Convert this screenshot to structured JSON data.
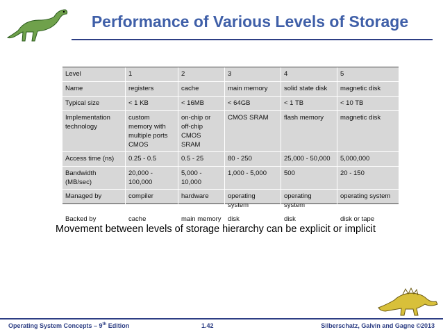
{
  "slide": {
    "title": "Performance of Various Levels of Storage",
    "caption": "Movement between levels of storage hierarchy can be explicit or implicit"
  },
  "table": {
    "header": [
      "Level",
      "1",
      "2",
      "3",
      "4",
      "5"
    ],
    "rows": [
      [
        "Name",
        "registers",
        "cache",
        "main memory",
        "solid state disk",
        "magnetic disk"
      ],
      [
        "Typical size",
        "< 1 KB",
        "< 16MB",
        "< 64GB",
        "< 1 TB",
        "< 10 TB"
      ],
      [
        "Implementation technology",
        "custom memory with multiple ports CMOS",
        "on-chip or off-chip CMOS SRAM",
        "CMOS SRAM",
        "flash memory",
        "magnetic disk"
      ],
      [
        "Access time (ns)",
        "0.25 - 0.5",
        "0.5 - 25",
        "80 - 250",
        "25,000 - 50,000",
        "5,000,000"
      ],
      [
        "Bandwidth (MB/sec)",
        "20,000 - 100,000",
        "5,000 - 10,000",
        "1,000 - 5,000",
        "500",
        "20 - 150"
      ],
      [
        "Managed by",
        "compiler",
        "hardware",
        "operating system",
        "operating system",
        "operating system"
      ],
      [
        "Backed by",
        "cache",
        "main memory",
        "disk",
        "disk",
        "disk or tape"
      ]
    ]
  },
  "footer": {
    "left_prefix": "Operating System Concepts – 9",
    "left_sup": "th",
    "left_suffix": " Edition",
    "middle": "1.42",
    "right": "Silberschatz, Galvin and Gagne ©2013"
  },
  "colors": {
    "title": "#3f5fa8",
    "rule": "#2d3e84",
    "table_bg": "#d7d7d7"
  },
  "icons": {
    "top_left": "dinosaur-icon",
    "bottom_right": "dinosaur-icon"
  }
}
